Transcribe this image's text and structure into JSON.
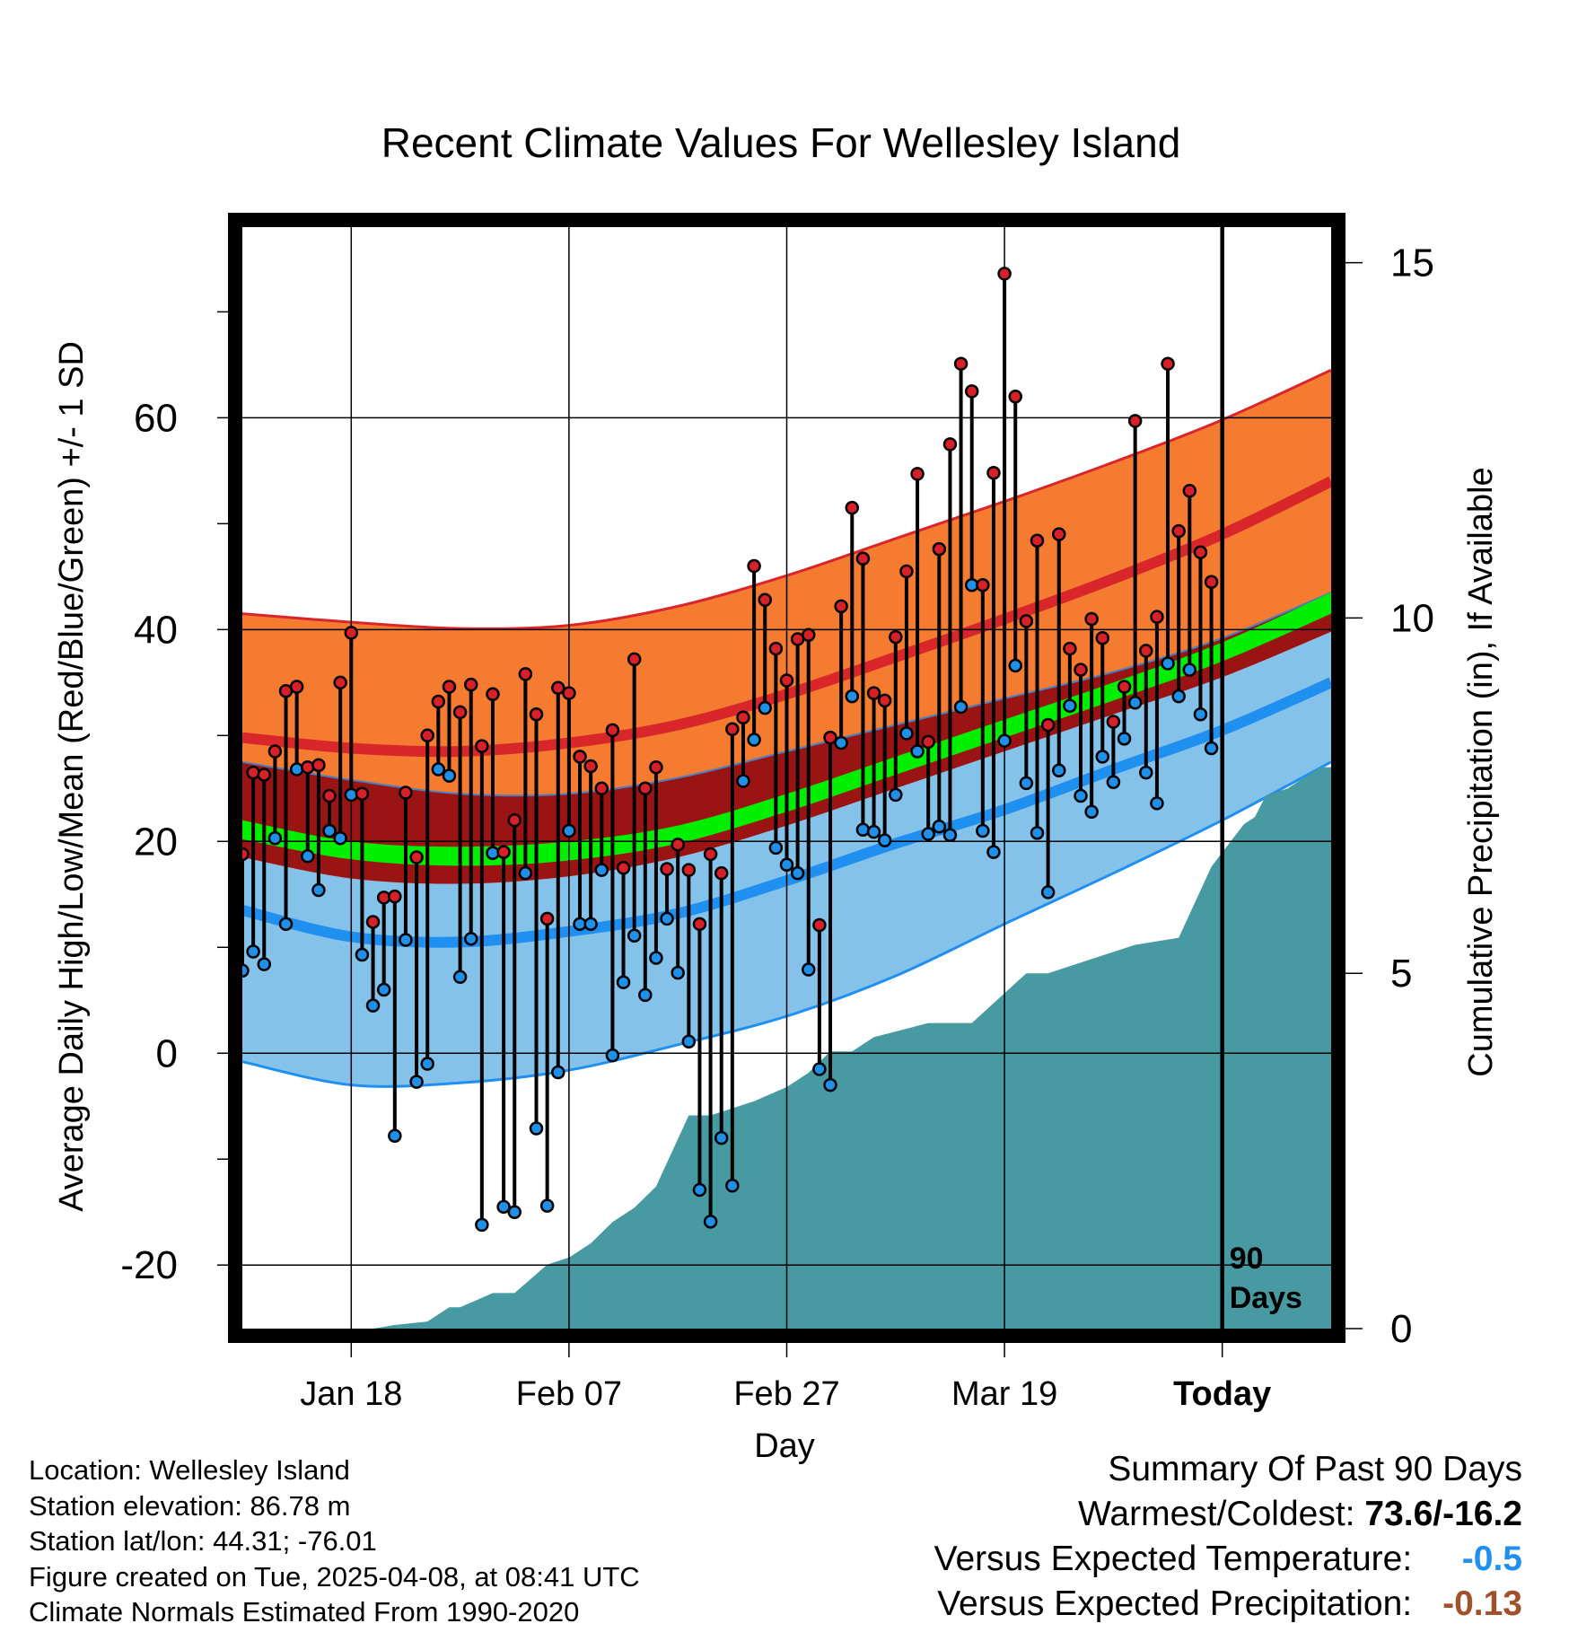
{
  "chart_data": {
    "type": "line",
    "title": "Recent Climate Values For Wellesley Island",
    "xlabel": "Day",
    "ylabel": "Average Daily High/Low/Mean (Red/Blue/Green) +/- 1 SD",
    "ylabel_right": "Cumulative Precipitation (in), If Available",
    "x_range": [
      -10,
      90
    ],
    "ylim": [
      -26,
      78
    ],
    "yticks": [
      -20,
      0,
      20,
      40,
      60
    ],
    "y2lim": [
      0,
      15.5
    ],
    "y2ticks": [
      0,
      5,
      10,
      15
    ],
    "xticks": [
      {
        "day": 0,
        "label": "Jan 18"
      },
      {
        "day": 20,
        "label": "Feb 07"
      },
      {
        "day": 40,
        "label": "Feb 27"
      },
      {
        "day": 60,
        "label": "Mar 19"
      },
      {
        "day": 80,
        "label": "Today"
      }
    ],
    "today_marker_day": 80,
    "today_annotation": [
      "90",
      "Days"
    ],
    "normals": {
      "days": [
        -10,
        0,
        10,
        20,
        30,
        40,
        50,
        60,
        70,
        80,
        90
      ],
      "high_plus_sd": [
        41.5,
        40.7,
        40.1,
        40.4,
        42.2,
        45.1,
        48.6,
        52.1,
        55.8,
        59.8,
        64.5
      ],
      "high_mean": [
        29.8,
        28.8,
        28.5,
        29.3,
        31.0,
        33.9,
        37.4,
        41.0,
        44.8,
        49.0,
        54.0
      ],
      "high_minus_sd": [
        27.5,
        25.8,
        24.5,
        24.5,
        26.0,
        28.5,
        31.0,
        33.5,
        36.0,
        39.2,
        43.5
      ],
      "mean_plus_sd": [
        27.5,
        25.8,
        24.5,
        24.5,
        26.0,
        28.5,
        31.0,
        33.5,
        36.0,
        39.2,
        43.5
      ],
      "mean_upper": [
        22.0,
        20.0,
        19.5,
        20.0,
        21.5,
        24.5,
        28.0,
        31.5,
        35.0,
        38.8,
        43.5
      ],
      "mean_lower": [
        20.2,
        18.3,
        17.7,
        18.2,
        19.8,
        22.8,
        26.3,
        29.8,
        33.3,
        37.0,
        41.5
      ],
      "mean_minus_sd": [
        18.5,
        16.5,
        16.0,
        16.7,
        18.5,
        21.5,
        25.0,
        28.5,
        32.0,
        35.5,
        39.8
      ],
      "low_plus_sd": [
        18.5,
        16.5,
        16.0,
        16.7,
        18.5,
        21.5,
        25.0,
        28.5,
        32.0,
        35.5,
        39.8
      ],
      "low_mean": [
        13.5,
        11.0,
        10.5,
        11.5,
        13.2,
        16.3,
        19.8,
        23.0,
        26.8,
        30.5,
        35.0
      ],
      "low_minus_sd": [
        -0.8,
        -3.0,
        -2.8,
        -1.6,
        0.8,
        3.5,
        7.3,
        12.2,
        17.0,
        22.0,
        27.5
      ]
    },
    "daily_high_low": {
      "days": [
        -10,
        -9,
        -8,
        -7,
        -6,
        -5,
        -4,
        -3,
        -2,
        -1,
        0,
        1,
        2,
        3,
        4,
        5,
        6,
        7,
        8,
        9,
        10,
        11,
        12,
        13,
        14,
        15,
        16,
        17,
        18,
        19,
        20,
        21,
        22,
        23,
        24,
        25,
        26,
        27,
        28,
        29,
        30,
        31,
        32,
        33,
        34,
        35,
        36,
        37,
        38,
        39,
        40,
        41,
        42,
        43,
        44,
        45,
        46,
        47,
        48,
        49,
        50,
        51,
        52,
        53,
        54,
        55,
        56,
        57,
        58,
        59,
        60,
        61,
        62,
        63,
        64,
        65,
        66,
        67,
        68,
        69,
        70,
        71,
        72,
        73,
        74,
        75,
        76,
        77,
        78,
        79
      ],
      "high": [
        18.8,
        26.5,
        26.3,
        28.5,
        34.2,
        34.6,
        27.0,
        27.2,
        24.3,
        35.0,
        39.7,
        24.5,
        12.4,
        14.7,
        14.8,
        24.6,
        18.5,
        30.0,
        33.2,
        34.6,
        32.2,
        34.8,
        29.0,
        33.9,
        19.0,
        22.0,
        35.8,
        32.0,
        12.7,
        34.5,
        34.0,
        28.0,
        27.1,
        25.0,
        30.5,
        17.5,
        37.2,
        25.0,
        27.0,
        17.4,
        19.7,
        17.3,
        12.2,
        18.8,
        17.0,
        30.6,
        31.7,
        46.0,
        42.8,
        38.2,
        35.2,
        39.1,
        39.5,
        12.1,
        29.8,
        42.2,
        51.5,
        46.7,
        34.0,
        33.3,
        39.3,
        45.5,
        54.7,
        29.4,
        47.6,
        57.5,
        65.1,
        62.5,
        44.2,
        54.8,
        73.6,
        62.0,
        40.8,
        48.4,
        31.0,
        49.0,
        38.2,
        36.2,
        41.0,
        39.2,
        31.3,
        34.6,
        59.7,
        38.0,
        41.2,
        65.1,
        49.3,
        53.1,
        47.3,
        44.5
      ],
      "low": [
        7.8,
        9.6,
        8.4,
        20.3,
        12.2,
        26.8,
        18.6,
        15.4,
        21.0,
        20.3,
        24.4,
        9.3,
        4.5,
        6.0,
        -7.8,
        10.7,
        -2.7,
        -1.0,
        26.8,
        26.2,
        7.2,
        10.8,
        -16.2,
        18.9,
        -14.5,
        -15.0,
        17.0,
        -7.1,
        -14.4,
        -1.8,
        21.0,
        12.2,
        12.2,
        17.3,
        -0.2,
        6.7,
        11.1,
        5.5,
        9.0,
        12.7,
        7.6,
        1.1,
        -12.9,
        -15.9,
        -8.0,
        -12.5,
        25.7,
        29.6,
        32.6,
        19.4,
        17.8,
        17.0,
        7.9,
        -1.5,
        -3.0,
        29.3,
        33.7,
        21.1,
        20.9,
        20.1,
        24.4,
        30.2,
        28.5,
        20.7,
        21.4,
        20.6,
        32.7,
        44.2,
        21.0,
        19.0,
        29.5,
        36.6,
        25.5,
        20.8,
        15.2,
        26.7,
        32.8,
        24.3,
        22.8,
        28.0,
        25.6,
        29.7,
        33.1,
        26.5,
        23.6,
        36.8,
        33.7,
        36.2,
        32.0,
        28.8
      ]
    },
    "precipitation": {
      "days": [
        -10,
        0,
        2,
        4,
        7,
        9,
        10,
        13,
        15,
        18,
        20,
        22,
        24,
        26,
        28,
        31,
        33,
        35,
        37,
        40,
        42,
        44,
        46,
        48,
        53,
        57,
        62,
        64,
        66,
        70,
        72,
        76,
        79,
        81,
        82,
        83,
        84,
        86,
        89,
        90
      ],
      "cumulative": [
        0,
        0,
        0,
        0.05,
        0.1,
        0.3,
        0.3,
        0.5,
        0.5,
        0.9,
        1.0,
        1.2,
        1.5,
        1.7,
        2.0,
        3.0,
        3.0,
        3.1,
        3.2,
        3.4,
        3.6,
        3.9,
        3.9,
        4.1,
        4.3,
        4.3,
        5.0,
        5.0,
        5.1,
        5.3,
        5.4,
        5.5,
        6.5,
        6.9,
        7.1,
        7.2,
        7.5,
        7.6,
        7.9,
        7.9
      ]
    }
  },
  "station": {
    "location": "Location: Wellesley Island",
    "elevation": "Station elevation: 86.78 m",
    "latlon": "Station lat/lon: 44.31; -76.01",
    "created": "Figure created on Tue, 2025-04-08, at 08:41 UTC",
    "normals": "Climate Normals Estimated From 1990-2020"
  },
  "summary": {
    "title": "Summary Of Past 90 Days",
    "warmest_coldest_label": "Warmest/Coldest:",
    "warmest_coldest_value": "73.6/-16.2",
    "temp_label": "Versus Expected Temperature:",
    "temp_value": "-0.5",
    "precip_label": "Versus Expected Precipitation:",
    "precip_value": "-0.13"
  },
  "colors": {
    "high_band": "#f47b30",
    "high_line": "#d8262b",
    "mean_band": "#9b1414",
    "mean_line": "#00ee00",
    "low_band": "#85c2ea",
    "low_line": "#1f8ff0",
    "precip_fill": "#479aa2",
    "high_dot": "#d82028",
    "low_dot": "#1f8fe8",
    "temp_summary": "#1f8ff0",
    "precip_summary": "#a0522d"
  }
}
